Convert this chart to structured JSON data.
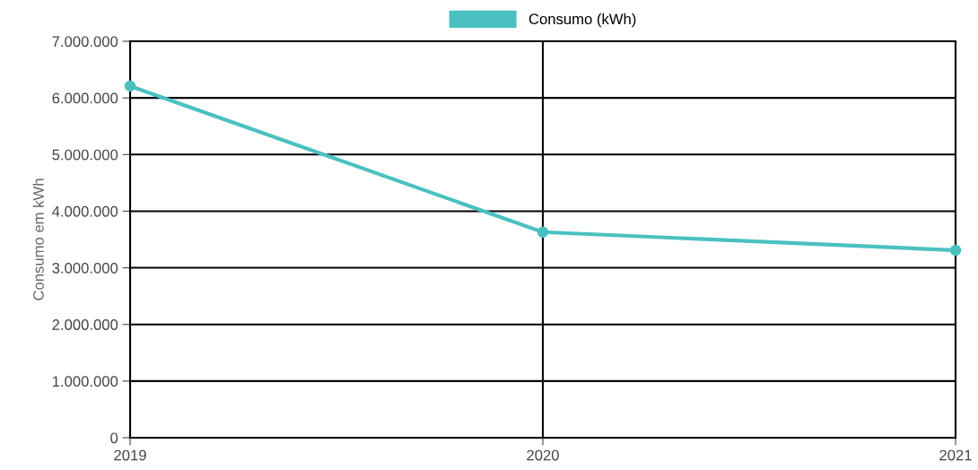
{
  "chart_data": {
    "type": "line",
    "ylabel": "Consumo em kWh",
    "categories": [
      "2019",
      "2020",
      "2021"
    ],
    "series": [
      {
        "name": "Consumo (kWh)",
        "color": "#4bc0c0",
        "values": [
          6210000,
          3630000,
          3310000
        ]
      }
    ],
    "ylim": [
      0,
      7000000
    ],
    "yticks": [
      {
        "value": 0,
        "label": "0"
      },
      {
        "value": 1000000,
        "label": "1.000.000"
      },
      {
        "value": 2000000,
        "label": "2.000.000"
      },
      {
        "value": 3000000,
        "label": "3.000.000"
      },
      {
        "value": 4000000,
        "label": "4.000.000"
      },
      {
        "value": 5000000,
        "label": "5.000.000"
      },
      {
        "value": 6000000,
        "label": "6.000.000"
      },
      {
        "value": 7000000,
        "label": "7.000.000"
      }
    ],
    "grid": true,
    "legend": "top",
    "marker": "circle",
    "line_style": "solid"
  }
}
